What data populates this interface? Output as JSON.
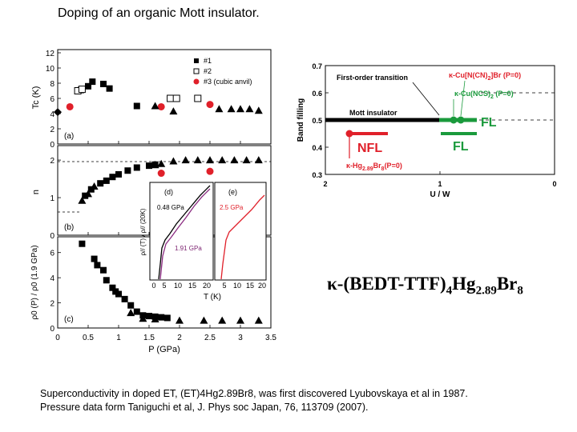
{
  "slide": {
    "title": "Doping of an organic Mott insulator.",
    "formula": {
      "kappa": "κ",
      "open": "-(BEDT-TTF)",
      "sub1": "4",
      "hg": "Hg",
      "sub2": "2.89",
      "br": "Br",
      "sub3": "8"
    },
    "caption_line1": "Superconductivity in doped ET,  (ET)4Hg2.89Br8,  was first discovered Lyubovskaya et al in 1987.",
    "caption_line2": "Pressure data form Taniguchi et al, J. Phys soc Japan, 76, 113709 (2007)."
  },
  "colors": {
    "red": "#e0202a",
    "green": "#1a9a3c",
    "black": "#000000"
  },
  "left_figure": {
    "xlabel": "P (GPa)",
    "x_ticks": [
      "0",
      "0.5",
      "1",
      "1.5",
      "2",
      "2.5",
      "3",
      "3.5"
    ],
    "xlim": [
      0,
      3.5
    ],
    "legend": [
      "#1",
      "#2",
      "#3 (cubic anvil)"
    ],
    "panel_a": {
      "label": "(a)",
      "ylabel": "Tc (K)",
      "ylim": [
        0,
        12
      ],
      "y_ticks": [
        "0",
        "2",
        "4",
        "6",
        "8",
        "10",
        "12"
      ],
      "chart_data": {
        "type": "scatter",
        "series": [
          {
            "name": "#1",
            "marker": "square",
            "points": [
              [
                0.38,
                7.1
              ],
              [
                0.5,
                7.6
              ],
              [
                0.57,
                8.2
              ],
              [
                0.75,
                7.9
              ],
              [
                0.85,
                7.3
              ],
              [
                1.3,
                5.0
              ]
            ]
          },
          {
            "name": "#2",
            "marker": "open-square",
            "points": [
              [
                0.33,
                7.0
              ],
              [
                0.4,
                7.2
              ],
              [
                1.85,
                6.0
              ],
              [
                1.95,
                6.0
              ],
              [
                2.3,
                6.0
              ]
            ]
          },
          {
            "name": "#3 (cubic anvil)",
            "marker": "circle",
            "points": [
              [
                0.2,
                4.9
              ],
              [
                1.7,
                4.9
              ],
              [
                2.5,
                5.2
              ]
            ]
          },
          {
            "name": "",
            "marker": "triangle",
            "points": [
              [
                1.6,
                5.0
              ],
              [
                1.9,
                4.3
              ],
              [
                2.65,
                4.6
              ],
              [
                2.85,
                4.6
              ],
              [
                3.0,
                4.6
              ],
              [
                3.15,
                4.6
              ],
              [
                3.3,
                4.4
              ]
            ]
          },
          {
            "name": "",
            "marker": "diamond",
            "points": [
              [
                0.0,
                4.2
              ]
            ]
          }
        ]
      }
    },
    "panel_b": {
      "label": "(b)",
      "ylabel": "n",
      "ylim": [
        0,
        2.3
      ],
      "y_ticks": [
        "0",
        "1",
        "2"
      ],
      "chart_data": {
        "type": "scatter",
        "series": [
          {
            "name": "#1",
            "marker": "square",
            "points": [
              [
                0.45,
                1.05
              ],
              [
                0.55,
                1.22
              ],
              [
                0.7,
                1.38
              ],
              [
                0.8,
                1.45
              ],
              [
                0.9,
                1.55
              ],
              [
                1.0,
                1.62
              ],
              [
                1.15,
                1.72
              ],
              [
                1.3,
                1.8
              ],
              [
                1.5,
                1.85
              ],
              [
                1.6,
                1.88
              ]
            ]
          },
          {
            "name": "",
            "marker": "triangle",
            "points": [
              [
                0.4,
                0.92
              ],
              [
                0.5,
                1.1
              ],
              [
                0.6,
                1.3
              ],
              [
                1.6,
                1.87
              ],
              [
                1.7,
                1.9
              ],
              [
                1.9,
                1.97
              ],
              [
                2.1,
                2.0
              ],
              [
                2.3,
                2.0
              ],
              [
                2.5,
                2.0
              ],
              [
                2.7,
                2.0
              ],
              [
                2.9,
                2.0
              ],
              [
                3.1,
                2.0
              ],
              [
                3.3,
                2.0
              ]
            ]
          },
          {
            "name": "#3 (cubic anvil)",
            "marker": "circle",
            "points": [
              [
                1.7,
                1.65
              ],
              [
                2.5,
                1.7
              ]
            ]
          }
        ]
      }
    },
    "panel_c": {
      "label": "(c)",
      "ylabel": "ρ0 (P) / ρ0 (1.9 GPa)",
      "ylim": [
        0,
        7
      ],
      "y_ticks": [
        "0",
        "2",
        "4",
        "6"
      ],
      "chart_data": {
        "type": "scatter",
        "series": [
          {
            "name": "#1",
            "marker": "square",
            "points": [
              [
                0.4,
                6.7
              ],
              [
                0.6,
                5.5
              ],
              [
                0.65,
                5.0
              ],
              [
                0.75,
                4.6
              ],
              [
                0.8,
                3.8
              ],
              [
                0.9,
                3.2
              ],
              [
                0.95,
                2.9
              ],
              [
                1.0,
                2.7
              ],
              [
                1.1,
                2.3
              ],
              [
                1.2,
                1.8
              ],
              [
                1.3,
                1.3
              ],
              [
                1.4,
                1.0
              ],
              [
                1.5,
                0.95
              ],
              [
                1.6,
                0.9
              ],
              [
                1.7,
                0.85
              ],
              [
                1.8,
                0.8
              ]
            ]
          },
          {
            "name": "",
            "marker": "triangle",
            "points": [
              [
                1.2,
                1.2
              ],
              [
                1.4,
                0.75
              ],
              [
                1.6,
                0.7
              ],
              [
                2.0,
                0.6
              ],
              [
                2.4,
                0.6
              ],
              [
                2.7,
                0.6
              ],
              [
                3.0,
                0.6
              ],
              [
                3.3,
                0.6
              ]
            ]
          }
        ]
      }
    },
    "inset_d": {
      "label": "(d)",
      "ylabel": "ρ// (T) / ρ// (20K)",
      "xlabel": "T (K)",
      "x_ticks": [
        "0",
        "5",
        "10",
        "15",
        "20"
      ],
      "annotations": [
        "0.48 GPa",
        "1.91 GPa"
      ]
    },
    "inset_e": {
      "label": "(e)",
      "x_ticks": [
        "5",
        "10",
        "15",
        "20"
      ],
      "annotations": [
        "2.5 GPa"
      ]
    }
  },
  "right_figure": {
    "ylabel": "Band filling",
    "xlabel": "U / W",
    "y_ticks": [
      "0.3",
      "0.4",
      "0.5",
      "0.6",
      "0.7"
    ],
    "x_ticks": [
      "2",
      "1",
      "0"
    ],
    "labels": {
      "first_order": "First-order transition",
      "cu_n": "κ-Cu[N(CN)",
      "cu_n_sub": "2",
      "cu_n_tail": "]Br (P=0)",
      "cu_ncs": "κ-Cu(NCS)",
      "cu_ncs_sub": "2",
      "cu_ncs_tail": " (P=0)",
      "mott": "Mott insulator",
      "fl_upper": "FL",
      "fl_lower": "FL",
      "nfl": "NFL",
      "hg": "κ-Hg",
      "hg_sub1": "2.89",
      "hg_mid": "Br",
      "hg_sub2": "8",
      "hg_tail": "(P=0)"
    }
  }
}
